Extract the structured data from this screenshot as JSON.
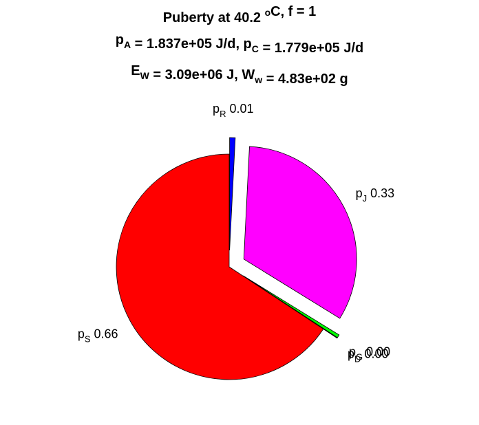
{
  "chart_data": {
    "type": "pie",
    "title_lines": [
      [
        {
          "t": "Puberty at 40.2 "
        },
        {
          "t": "o",
          "sup": true
        },
        {
          "t": "C, f = 1"
        }
      ],
      [
        {
          "t": "p"
        },
        {
          "t": "A",
          "sub": true
        },
        {
          "t": " = 1.837e+05 J/d,  p"
        },
        {
          "t": "C",
          "sub": true
        },
        {
          "t": " = 1.779e+05 J/d"
        }
      ],
      [
        {
          "t": "E"
        },
        {
          "t": "W",
          "sub": true
        },
        {
          "t": " = 3.09e+06 J, W"
        },
        {
          "t": "w",
          "sub": true
        },
        {
          "t": " = 4.83e+02 g"
        }
      ]
    ],
    "slices": [
      {
        "key": "pR",
        "symbol": "p",
        "sub": "R",
        "value": 0.008,
        "display": "0.01",
        "color": "#0000ff"
      },
      {
        "key": "pJ",
        "symbol": "p",
        "sub": "J",
        "value": 0.33,
        "display": "0.33",
        "color": "#ff00ff"
      },
      {
        "key": "pG",
        "symbol": "p",
        "sub": "G",
        "value": 0.0045,
        "display": "0.00",
        "color": "#00ff00"
      },
      {
        "key": "pD",
        "symbol": "p",
        "sub": "D",
        "value": 0.0005,
        "display": "0.00",
        "color": "#ff0000"
      },
      {
        "key": "pS",
        "symbol": "p",
        "sub": "S",
        "value": 0.657,
        "display": "0.66",
        "color": "#ff0000"
      }
    ],
    "exploded": [
      "pR",
      "pJ",
      "pG",
      "pD"
    ],
    "start": "top",
    "direction": "clockwise",
    "legend": "none"
  }
}
